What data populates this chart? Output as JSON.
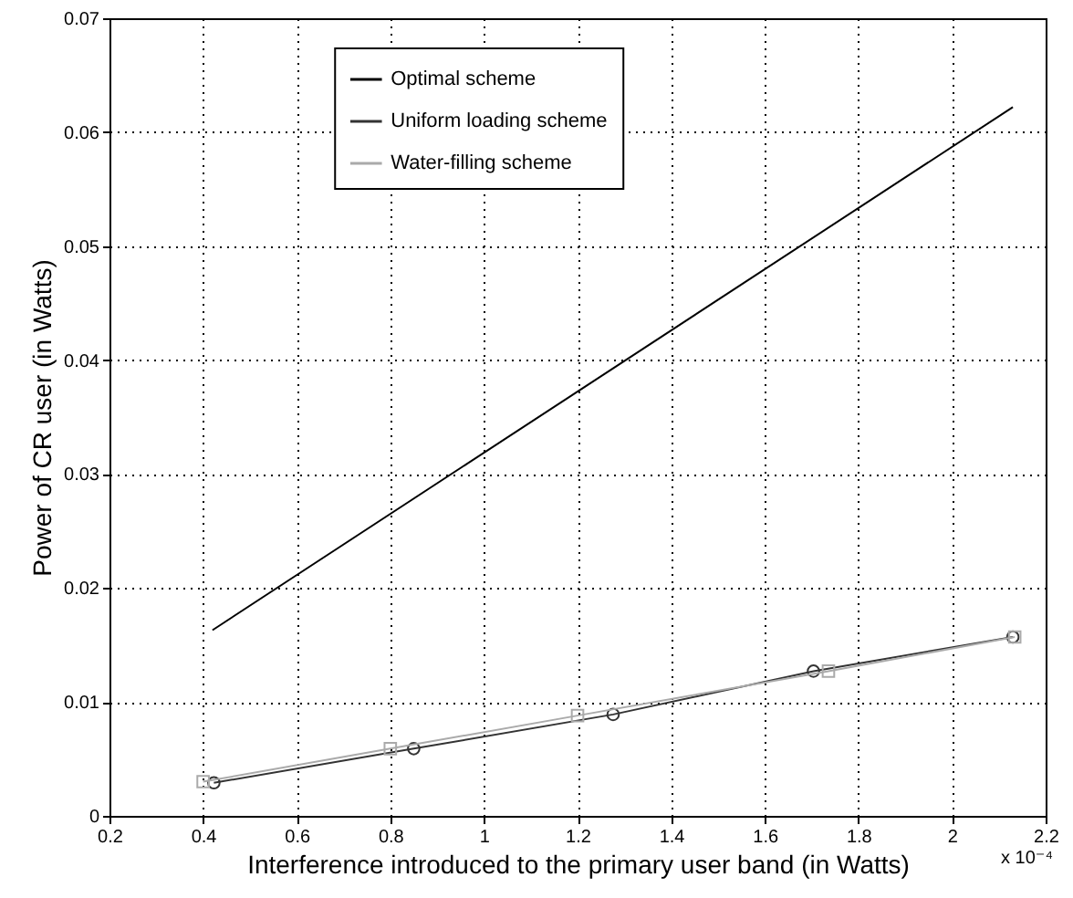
{
  "chart_data": {
    "type": "line",
    "xlabel": "Interference introduced to the primary user band (in Watts)",
    "ylabel": "Power of CR user (in Watts)",
    "xlim": [
      0.2,
      2.2
    ],
    "xticks": [
      0.2,
      0.4,
      0.6,
      0.8,
      1,
      1.2,
      1.4,
      1.6,
      1.8,
      2,
      2.2
    ],
    "ylim": [
      0,
      0.07
    ],
    "yticks": [
      0,
      0.01,
      0.02,
      0.03,
      0.04,
      0.05,
      0.06,
      0.07
    ],
    "grid": true,
    "legend": "top",
    "annotations": [
      "x 10⁻⁴"
    ],
    "series": [
      {
        "name": "Optimal scheme",
        "color": "#000000",
        "marker": "none",
        "x": [
          0.42,
          2.13
        ],
        "values": [
          0.0163,
          0.0622
        ]
      },
      {
        "name": "Uniform loading scheme",
        "color": "#333333",
        "marker": "circle",
        "x": [
          0.423,
          0.85,
          1.276,
          1.704,
          2.13
        ],
        "values": [
          0.0029,
          0.0059,
          0.0089,
          0.0127,
          0.0157
        ]
      },
      {
        "name": "Water-filling scheme",
        "color": "#aaaaaa",
        "marker": "square",
        "x": [
          0.4,
          0.8,
          1.2,
          1.736,
          2.134
        ],
        "values": [
          0.003,
          0.0059,
          0.0088,
          0.0127,
          0.0157
        ]
      }
    ]
  }
}
